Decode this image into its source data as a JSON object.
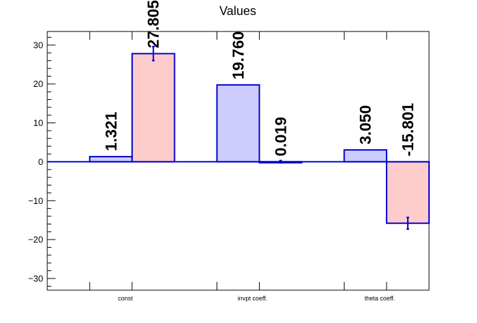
{
  "chart_data": {
    "type": "bar",
    "title": "Values",
    "categories": [
      "const",
      "invpt coeff.",
      "theta coeff."
    ],
    "series": [
      {
        "values": [
          1.321,
          19.76,
          3.05
        ],
        "errors": [
          0,
          0,
          0
        ],
        "color": "#ccccff",
        "stroke": "#0000cc"
      },
      {
        "values": [
          27.805,
          0.019,
          -15.801
        ],
        "errors": [
          1.8,
          0.3,
          1.5
        ],
        "color": "#ffcccc",
        "stroke": "#0000cc"
      }
    ],
    "value_labels": [
      [
        "1.321",
        "19.760",
        "3.050"
      ],
      [
        "27.805",
        "0.019",
        "-15.801"
      ]
    ],
    "ylim": [
      -33,
      33.5
    ],
    "yticks": [
      -30,
      -20,
      -10,
      0,
      10,
      20,
      30
    ],
    "yticks_labels": [
      "−30",
      "−20",
      "−10",
      "0",
      "10",
      "20",
      "30"
    ],
    "grid": false,
    "baseline": 0
  }
}
